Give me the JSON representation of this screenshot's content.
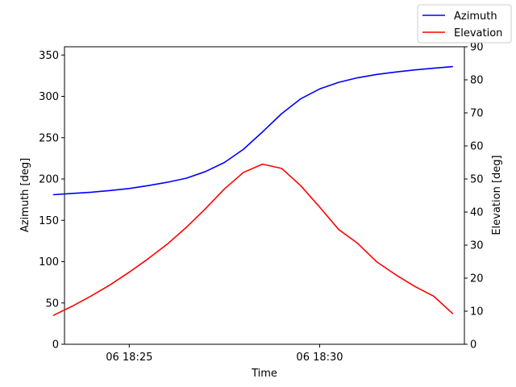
{
  "chart_data": {
    "type": "line",
    "xlabel": "Time",
    "ylabel_left": "Azimuth [deg]",
    "ylabel_right": "Elevation [deg]",
    "x_ticks": [
      {
        "minute": 25,
        "label": "06 18:25"
      },
      {
        "minute": 30,
        "label": "06 18:30"
      }
    ],
    "xlim": [
      23.3,
      33.8
    ],
    "ylim_left": [
      0,
      360
    ],
    "ylim_right": [
      0,
      90
    ],
    "yticks_left": [
      0,
      50,
      100,
      150,
      200,
      250,
      300,
      350
    ],
    "yticks_right": [
      0,
      10,
      20,
      30,
      40,
      50,
      60,
      70,
      80,
      90
    ],
    "x_minutes": [
      23.0,
      23.5,
      24.0,
      24.5,
      25.0,
      25.5,
      26.0,
      26.5,
      27.0,
      27.5,
      28.0,
      28.5,
      29.0,
      29.5,
      30.0,
      30.5,
      31.0,
      31.5,
      32.0,
      32.5,
      33.0,
      33.5
    ],
    "series": [
      {
        "name": "Azimuth",
        "axis": "left",
        "color": "#0000ff",
        "values": [
          181,
          182.5,
          184,
          186,
          188.5,
          192,
          196,
          201,
          209,
          220,
          236,
          257,
          279,
          297,
          309,
          317,
          322.5,
          326.5,
          329.5,
          332,
          334,
          336
        ]
      },
      {
        "name": "Elevation",
        "axis": "right",
        "color": "#ff0000",
        "values": [
          8.7,
          11.5,
          14.6,
          18.0,
          21.8,
          25.9,
          30.3,
          35.4,
          41.0,
          47.0,
          52.0,
          54.5,
          53.2,
          48.0,
          41.5,
          34.7,
          30.5,
          24.9,
          21.0,
          17.5,
          14.5,
          9.2
        ]
      }
    ],
    "legend_placement": "top-right",
    "grid": false
  }
}
